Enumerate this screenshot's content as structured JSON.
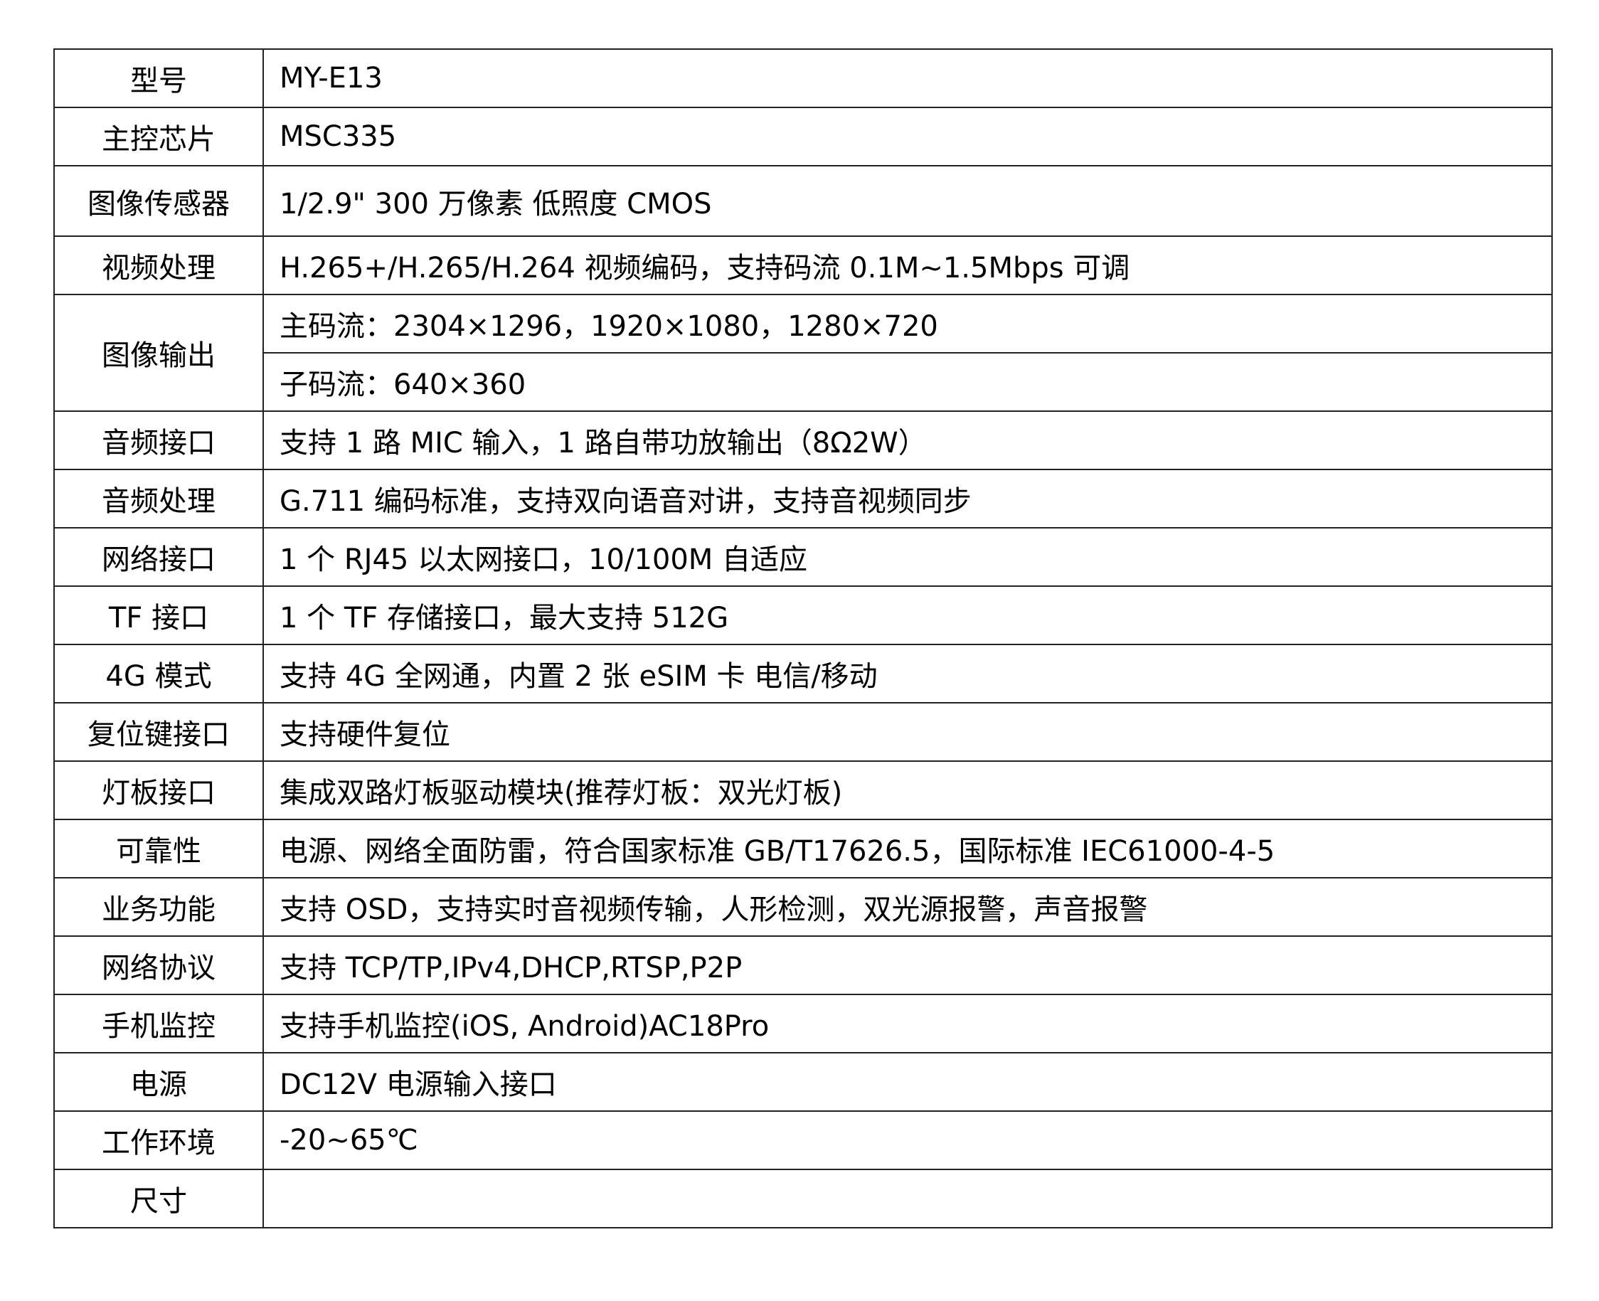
{
  "rows": [
    {
      "label": "型号",
      "values": [
        "MY-E13"
      ]
    },
    {
      "label": "主控芯片",
      "values": [
        "MSC335"
      ]
    },
    {
      "label": "图像传感器",
      "values": [
        "1/2.9\" 300 万像素 低照度 CMOS"
      ]
    },
    {
      "label": "视频处理",
      "values": [
        "H.265+/H.265/H.264 视频编码，支持码流 0.1M~1.5Mbps 可调"
      ]
    },
    {
      "label": "图像输出",
      "values": [
        "主码流：2304×1296，1920×1080，1280×720",
        "子码流：640×360"
      ]
    },
    {
      "label": "音频接口",
      "values": [
        "支持 1 路 MIC 输入，1 路自带功放输出（8Ω2W）"
      ]
    },
    {
      "label": "音频处理",
      "values": [
        "G.711 编码标准，支持双向语音对讲，支持音视频同步"
      ]
    },
    {
      "label": "网络接口",
      "values": [
        "1 个 RJ45 以太网接口，10/100M 自适应"
      ]
    },
    {
      "label": "TF 接口",
      "values": [
        "1 个 TF 存储接口，最大支持 512G"
      ]
    },
    {
      "label": "4G 模式",
      "values": [
        "支持 4G 全网通，内置 2 张 eSIM 卡 电信/移动"
      ]
    },
    {
      "label": "复位键接口",
      "values": [
        "支持硬件复位"
      ]
    },
    {
      "label": "灯板接口",
      "values": [
        "集成双路灯板驱动模块(推荐灯板：双光灯板)"
      ]
    },
    {
      "label": "可靠性",
      "values": [
        "电源、网络全面防雷，符合国家标准 GB/T17626.5，国际标准 IEC61000-4-5"
      ]
    },
    {
      "label": "业务功能",
      "values": [
        "支持 OSD，支持实时音视频传输，人形检测，双光源报警，声音报警"
      ]
    },
    {
      "label": "网络协议",
      "values": [
        "支持 TCP/TP,IPv4,DHCP,RTSP,P2P"
      ]
    },
    {
      "label": "手机监控",
      "values": [
        "支持手机监控(iOS, Android)AC18Pro"
      ]
    },
    {
      "label": "电源",
      "values": [
        "DC12V 电源输入接口"
      ]
    },
    {
      "label": "工作环境",
      "values": [
        "-20~65℃"
      ]
    },
    {
      "label": "尺寸",
      "values": [
        ""
      ]
    }
  ]
}
